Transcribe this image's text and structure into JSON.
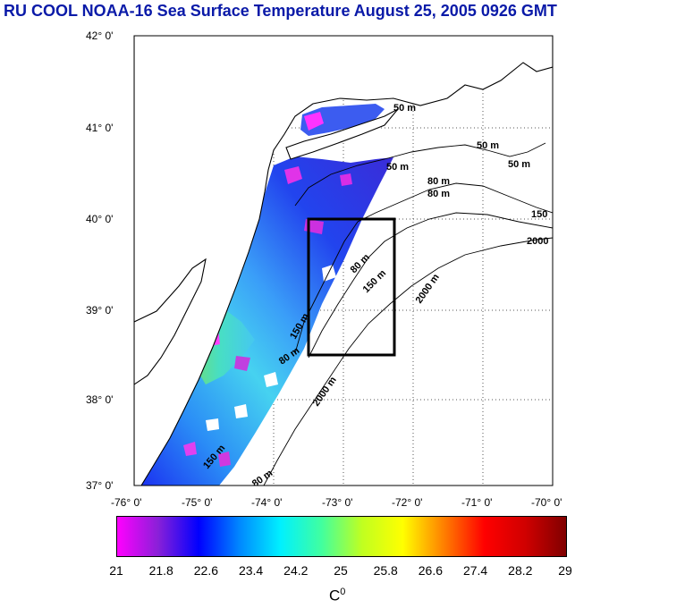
{
  "title": "RU COOL  NOAA-16 Sea Surface Temperature August 25, 2005 0926 GMT",
  "map": {
    "lat_ticks": [
      "42° 0'",
      "41° 0'",
      "40° 0'",
      "39° 0'",
      "38° 0'",
      "37° 0'"
    ],
    "lon_ticks": [
      "-76° 0'",
      "-75° 0'",
      "-74° 0'",
      "-73° 0'",
      "-72° 0'",
      "-71° 0'",
      "-70° 0'"
    ],
    "lat_range": [
      37,
      42
    ],
    "lon_range": [
      -76,
      -70
    ],
    "study_box": {
      "lon": [
        -73.5,
        -72.3
      ],
      "lat": [
        38.5,
        40.0
      ]
    },
    "contour_labels": [
      "50 m",
      "50 m",
      "50 m",
      "50 m",
      "80 m",
      "80 m",
      "150",
      "2000",
      "80 m",
      "150 m",
      "2000 m",
      "2000 m",
      "80 m",
      "150 m",
      "80 m",
      "150 m"
    ]
  },
  "colorbar": {
    "tick_labels": [
      "21",
      "21.8",
      "22.6",
      "23.4",
      "24.2",
      "25",
      "25.8",
      "26.6",
      "27.4",
      "28.2",
      "29"
    ],
    "range": [
      21,
      29
    ],
    "colors": [
      "#ff00ff",
      "#8a20d8",
      "#0000ff",
      "#0088ff",
      "#00f0ff",
      "#40ffa0",
      "#c0ff20",
      "#ffff00",
      "#ff8000",
      "#ff0000",
      "#d00000",
      "#800000"
    ]
  },
  "unit": {
    "text": "C",
    "superscript": "0"
  }
}
